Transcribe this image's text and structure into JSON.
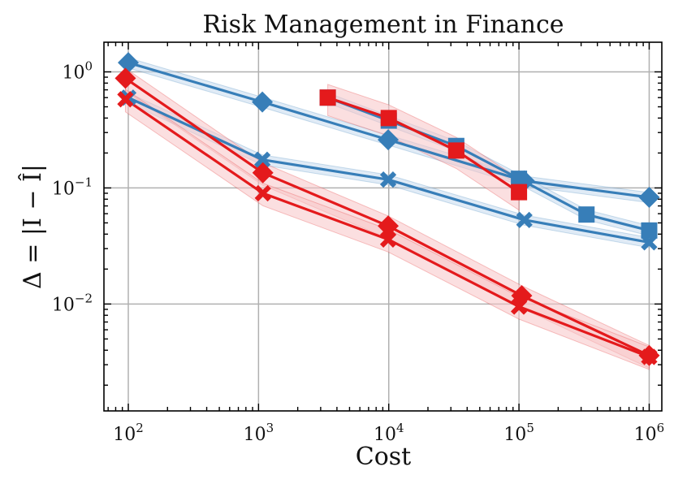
{
  "chart_data": {
    "type": "line",
    "title": "Risk Management in Finance",
    "xlabel": "Cost",
    "ylabel": "Δ = |I − Î|",
    "xscale": "log",
    "yscale": "log",
    "xlim": [
      65,
      1250000
    ],
    "ylim": [
      0.0012,
      1.8
    ],
    "grid": true,
    "x_ticks": [
      {
        "value": 100,
        "base": "10",
        "exp": "2"
      },
      {
        "value": 1000,
        "base": "10",
        "exp": "3"
      },
      {
        "value": 10000,
        "base": "10",
        "exp": "4"
      },
      {
        "value": 100000,
        "base": "10",
        "exp": "5"
      },
      {
        "value": 1000000,
        "base": "10",
        "exp": "6"
      }
    ],
    "y_ticks": [
      {
        "value": 1,
        "base": "10",
        "exp": "0"
      },
      {
        "value": 0.1,
        "base": "10",
        "exp": "−1"
      },
      {
        "value": 0.01,
        "base": "10",
        "exp": "−2"
      }
    ],
    "colors": {
      "blue": "#377eb8",
      "red": "#e41a1c",
      "blue_band": "#c6dbef",
      "red_band": "#f7c5c6"
    },
    "series": [
      {
        "name": "blue-diamond",
        "color": "blue",
        "marker": "diamond",
        "x": [
          100,
          1070,
          9900,
          110000,
          1000000
        ],
        "y": [
          1.2,
          0.55,
          0.26,
          0.115,
          0.083
        ],
        "band": 0.1
      },
      {
        "name": "blue-cross",
        "color": "blue",
        "marker": "x",
        "x": [
          100,
          1070,
          9900,
          110000,
          1000000
        ],
        "y": [
          0.6,
          0.175,
          0.118,
          0.053,
          0.034
        ],
        "band": 0.1
      },
      {
        "name": "blue-square",
        "color": "blue",
        "marker": "square",
        "x": [
          3400,
          10000,
          33000,
          100000,
          330000,
          1000000
        ],
        "y": [
          0.6,
          0.38,
          0.23,
          0.12,
          0.059,
          0.043
        ],
        "band": 0.1
      },
      {
        "name": "red-square",
        "color": "red",
        "marker": "square",
        "x": [
          3400,
          10000,
          33000,
          100000
        ],
        "y": [
          0.6,
          0.4,
          0.21,
          0.092
        ],
        "band": 0.3
      },
      {
        "name": "red-diamond",
        "color": "red",
        "marker": "diamond",
        "x": [
          95,
          1080,
          9900,
          105000,
          1000000
        ],
        "y": [
          0.88,
          0.135,
          0.047,
          0.0118,
          0.0036
        ],
        "band": 0.22
      },
      {
        "name": "red-cross",
        "color": "red",
        "marker": "x",
        "x": [
          95,
          1080,
          9900,
          100000,
          1000000
        ],
        "y": [
          0.58,
          0.09,
          0.036,
          0.0095,
          0.0035
        ],
        "band": 0.22
      }
    ]
  }
}
